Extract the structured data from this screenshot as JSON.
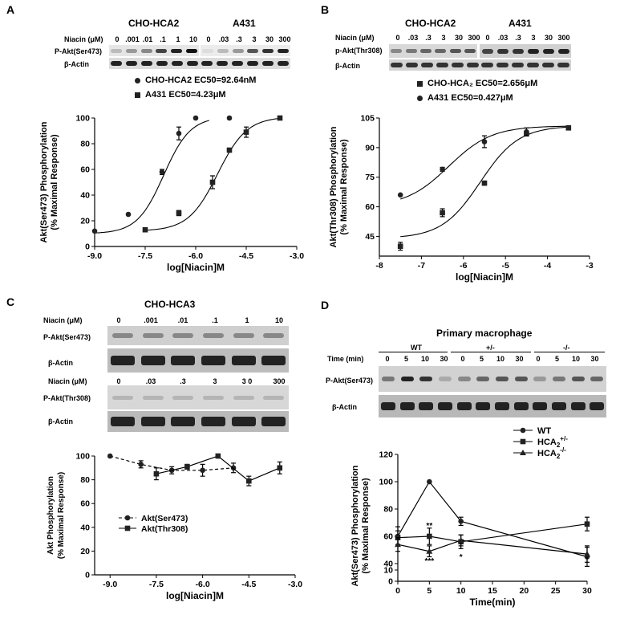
{
  "panels": {
    "A": {
      "letter": "A",
      "blot": {
        "group_left": "CHO-HCA2",
        "group_right": "A431",
        "niacin_label": "Niacin (μM)",
        "ticks_left": [
          "0",
          ".001",
          ".01",
          ".1",
          "1",
          "10"
        ],
        "ticks_right": [
          "0",
          ".03",
          ".3",
          "3",
          "30",
          "300"
        ],
        "row1": "P-Akt(Ser473)",
        "row2": "β-Actin"
      },
      "legend": [
        {
          "marker": "circle",
          "text": "CHO-HCA2 EC50=92.64nM"
        },
        {
          "marker": "square",
          "text": "A431  EC50=4.23μM"
        }
      ]
    },
    "B": {
      "letter": "B",
      "blot": {
        "group_left": "CHO-HCA2",
        "group_right": "A431",
        "niacin_label": "Niacin (μM)",
        "ticks_left": [
          "0",
          ".03",
          ".3",
          "3",
          "30",
          "300"
        ],
        "ticks_right": [
          "0",
          ".03",
          ".3",
          "3",
          "30",
          "300"
        ],
        "row1": "p-Akt(Thr308)",
        "row2": "β-Actin"
      },
      "legend": [
        {
          "marker": "square",
          "text": "CHO-HCA₂ EC50=2.656μM"
        },
        {
          "marker": "circle",
          "text": "A431  EC50=0.427μM"
        }
      ]
    },
    "C": {
      "letter": "C",
      "blot": {
        "title": "CHO-HCA3",
        "niacin_label": "Niacin (μM)",
        "ticks_top": [
          "0",
          ".001",
          ".01",
          ".1",
          "1",
          "10"
        ],
        "row1": "P-Akt(Ser473)",
        "row2": "β-Actin",
        "niacin_label2": "Niacin (μM)",
        "ticks_bottom": [
          "0",
          ".03",
          ".3",
          "3",
          "3 0",
          "300"
        ],
        "row3": "P-Akt(Thr308)",
        "row4": "β-Actin"
      }
    },
    "D": {
      "letter": "D",
      "blot": {
        "title": "Primary macrophage",
        "group_wt": "WT",
        "group_het": "+/-",
        "group_ko": "-/-",
        "time_label": "Time (min)",
        "time_ticks": [
          "0",
          "5",
          "10",
          "30",
          "0",
          "5",
          "10",
          "30",
          "0",
          "5",
          "10",
          "30"
        ],
        "row1": "P-Akt(Ser473)",
        "row2": "β-Actin"
      },
      "annotations": [
        "**",
        "***",
        "*"
      ]
    }
  },
  "chart_data": [
    {
      "panel": "A",
      "type": "scatter",
      "xlabel": "log[Niacin]M",
      "ylabel": "Akt(Ser473) Phosphorylation\n(% Maximal Response)",
      "xlim": [
        -9.0,
        -3.0
      ],
      "ylim": [
        0,
        100
      ],
      "xticks": [
        "-9.0",
        "-7.5",
        "-6.0",
        "-4.5",
        "-3.0"
      ],
      "yticks": [
        "0",
        "20",
        "40",
        "60",
        "80",
        "100"
      ],
      "series": [
        {
          "name": "CHO-HCA2",
          "marker": "circle",
          "x": [
            -9.0,
            -8.0,
            -7.0,
            -6.5,
            -6.0,
            -5.0
          ],
          "y": [
            12,
            25,
            58,
            88,
            100,
            100
          ],
          "err": [
            0,
            0,
            2,
            5,
            0,
            0
          ]
        },
        {
          "name": "A431",
          "marker": "square",
          "x": [
            -7.5,
            -6.5,
            -5.5,
            -5.0,
            -4.5,
            -3.5
          ],
          "y": [
            13,
            26,
            50,
            75,
            89,
            100
          ],
          "err": [
            0,
            2,
            5,
            0,
            4,
            0
          ]
        }
      ]
    },
    {
      "panel": "B",
      "type": "scatter",
      "xlabel": "log[Niacin]M",
      "ylabel": "Akt(Thr308) Phosphorylation\n(% Maximal Response)",
      "xlim": [
        -8,
        -3
      ],
      "ylim": [
        35,
        105
      ],
      "xticks": [
        "-8",
        "-7",
        "-6",
        "-5",
        "-4",
        "-3"
      ],
      "yticks": [
        "45",
        "60",
        "75",
        "90",
        "105"
      ],
      "series": [
        {
          "name": "CHO-HCA2",
          "marker": "square",
          "x": [
            -7.5,
            -6.5,
            -5.5,
            -4.5,
            -3.5
          ],
          "y": [
            40,
            57,
            72,
            97,
            100
          ],
          "err": [
            2,
            2,
            1,
            1,
            0
          ]
        },
        {
          "name": "A431",
          "marker": "circle",
          "x": [
            -7.5,
            -6.5,
            -5.5,
            -4.5
          ],
          "y": [
            66,
            79,
            93,
            98
          ],
          "err": [
            0,
            1,
            3,
            2
          ]
        }
      ]
    },
    {
      "panel": "C",
      "type": "line",
      "xlabel": "log[Niacin]M",
      "ylabel": "Akt Phosphorylation\n(% Maximal Response)",
      "xlim": [
        -9.5,
        -3.0
      ],
      "ylim": [
        0,
        100
      ],
      "xticks": [
        "-9.0",
        "-7.5",
        "-6.0",
        "-4.5",
        "-3.0"
      ],
      "yticks": [
        "0",
        "20",
        "40",
        "60",
        "80",
        "100"
      ],
      "series": [
        {
          "name": "Akt(Ser473)",
          "marker": "circle",
          "dashed": true,
          "x": [
            -9.0,
            -8.0,
            -7.0,
            -6.0,
            -5.0
          ],
          "y": [
            100,
            93,
            88,
            88,
            90
          ],
          "err": [
            0,
            3,
            3,
            5,
            4
          ]
        },
        {
          "name": "Akt(Thr308)",
          "marker": "square",
          "dashed": false,
          "x": [
            -7.5,
            -6.5,
            -5.5,
            -4.5,
            -3.5
          ],
          "y": [
            85,
            91,
            100,
            79,
            90
          ],
          "err": [
            5,
            2,
            0,
            4,
            5
          ]
        }
      ]
    },
    {
      "panel": "D",
      "type": "line",
      "xlabel": "Time(min)",
      "ylabel": "Akt(Ser473) Phosphorylation\n(% Maximal Response)",
      "xlim": [
        0,
        30
      ],
      "ylim": [
        0,
        120
      ],
      "xticks": [
        "0",
        "5",
        "10",
        "15",
        "20",
        "25",
        "30"
      ],
      "yticks": [
        "0",
        "10",
        "40",
        "60",
        "80",
        "100",
        "120"
      ],
      "series": [
        {
          "name": "WT",
          "marker": "circle",
          "x": [
            0,
            5,
            10,
            30
          ],
          "y": [
            60,
            100,
            71,
            45
          ],
          "err": [
            7,
            0,
            3,
            7
          ]
        },
        {
          "name": "HCA2+/-",
          "marker": "square",
          "x": [
            0,
            5,
            10,
            30
          ],
          "y": [
            59,
            60,
            56,
            69
          ],
          "err": [
            5,
            6,
            5,
            5
          ]
        },
        {
          "name": "HCA2-/-",
          "marker": "triangle",
          "x": [
            0,
            5,
            10,
            30
          ],
          "y": [
            54,
            49,
            57,
            47
          ],
          "err": [
            5,
            4,
            4,
            6
          ]
        }
      ]
    }
  ]
}
